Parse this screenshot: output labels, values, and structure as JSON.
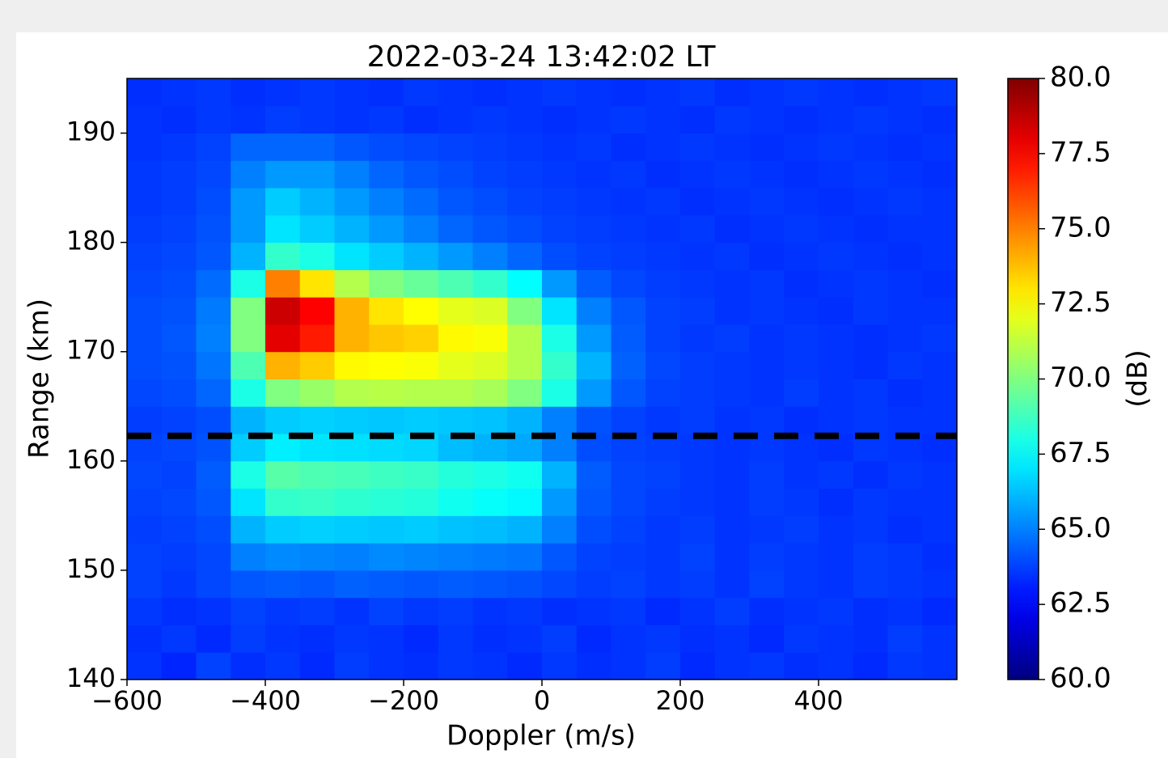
{
  "chart_data": {
    "type": "heatmap",
    "title": "2022-03-24 13:42:02 LT",
    "x_label": "Doppler (m/s)",
    "y_label": "Range (km)",
    "colorbar_label": "(dB)",
    "colormap": "jet",
    "xlim": [
      -600,
      600
    ],
    "ylim": [
      140,
      195
    ],
    "zlim": [
      60,
      80
    ],
    "xticks": [
      {
        "value": -600,
        "label": "−600"
      },
      {
        "value": -400,
        "label": "−400"
      },
      {
        "value": -200,
        "label": "−200"
      },
      0,
      200,
      400
    ],
    "yticks": [
      140,
      150,
      160,
      170,
      180,
      190
    ],
    "zticks": [
      {
        "value": 60,
        "label": "60.0"
      },
      {
        "value": 62.5,
        "label": "62.5"
      },
      {
        "value": 65,
        "label": "65.0"
      },
      {
        "value": 67.5,
        "label": "67.5"
      },
      {
        "value": 70,
        "label": "70.0"
      },
      {
        "value": 72.5,
        "label": "72.5"
      },
      {
        "value": 75,
        "label": "75.0"
      },
      {
        "value": 77.5,
        "label": "77.5"
      },
      {
        "value": 80,
        "label": "80.0"
      }
    ],
    "reference_line": {
      "y": 162.3,
      "color": "#000000"
    },
    "x": [
      -575,
      -525,
      -475,
      -425,
      -375,
      -325,
      -275,
      -225,
      -175,
      -125,
      -75,
      -25,
      25,
      75,
      125,
      175,
      225,
      275,
      325,
      375,
      425,
      475,
      525,
      575
    ],
    "y": [
      141.25,
      143.75,
      146.25,
      148.75,
      151.25,
      153.75,
      156.25,
      158.75,
      161.25,
      163.75,
      166.25,
      168.75,
      171.25,
      173.75,
      176.25,
      178.75,
      181.25,
      183.75,
      186.25,
      188.75,
      191.25,
      193.75
    ],
    "z": [
      [
        63.5,
        63.2,
        63.8,
        63.4,
        63.6,
        63.3,
        63.7,
        63.5,
        63.4,
        63.6,
        63.5,
        63.3,
        63.6,
        63.4,
        63.5,
        63.7,
        63.3,
        63.5,
        63.6,
        63.4,
        63.5,
        63.3,
        63.6,
        63.5
      ],
      [
        63.4,
        63.6,
        63.3,
        63.7,
        63.5,
        63.4,
        63.6,
        63.5,
        63.3,
        63.6,
        63.4,
        63.5,
        63.7,
        63.3,
        63.5,
        63.6,
        63.4,
        63.5,
        63.3,
        63.6,
        63.5,
        63.4,
        63.7,
        63.5
      ],
      [
        63.6,
        63.4,
        63.5,
        63.8,
        63.6,
        63.7,
        63.5,
        63.8,
        63.6,
        63.7,
        63.5,
        63.6,
        63.4,
        63.5,
        63.6,
        63.3,
        63.5,
        63.7,
        63.4,
        63.5,
        63.6,
        63.4,
        63.5,
        63.3
      ],
      [
        63.8,
        63.6,
        63.9,
        64.2,
        64.3,
        64.2,
        64.4,
        64.3,
        64.2,
        64.3,
        64.2,
        64.1,
        63.9,
        63.7,
        63.8,
        63.6,
        63.7,
        63.5,
        63.8,
        63.6,
        63.5,
        63.7,
        63.6,
        63.5
      ],
      [
        63.8,
        63.7,
        63.9,
        65.0,
        65.2,
        65.1,
        65.0,
        65.2,
        65.1,
        65.0,
        64.9,
        64.8,
        64.2,
        63.8,
        63.7,
        63.6,
        63.8,
        63.5,
        63.7,
        63.6,
        63.5,
        63.7,
        63.6,
        63.4
      ],
      [
        63.7,
        63.8,
        64.0,
        66.0,
        66.5,
        66.6,
        66.5,
        66.4,
        66.5,
        66.3,
        66.2,
        66.0,
        65.0,
        64.0,
        63.8,
        63.6,
        63.7,
        63.5,
        63.6,
        63.7,
        63.5,
        63.6,
        63.4,
        63.5
      ],
      [
        63.8,
        63.9,
        64.2,
        67.0,
        68.5,
        68.6,
        68.4,
        68.3,
        68.2,
        67.8,
        67.6,
        67.4,
        65.5,
        64.2,
        63.9,
        63.7,
        63.6,
        63.5,
        63.7,
        63.6,
        63.4,
        63.6,
        63.5,
        63.5
      ],
      [
        63.9,
        63.8,
        64.3,
        68.0,
        69.2,
        69.0,
        68.9,
        68.7,
        68.6,
        68.2,
        68.0,
        67.8,
        66.0,
        64.3,
        63.9,
        63.8,
        63.6,
        63.5,
        63.7,
        63.5,
        63.6,
        63.4,
        63.6,
        63.5
      ],
      [
        63.8,
        63.9,
        64.1,
        66.5,
        67.2,
        67.0,
        66.9,
        66.8,
        66.7,
        66.2,
        66.0,
        65.8,
        65.0,
        64.0,
        63.8,
        63.7,
        63.6,
        63.5,
        63.6,
        63.5,
        63.4,
        63.6,
        63.5,
        63.4
      ],
      [
        63.7,
        63.8,
        64.0,
        66.0,
        66.5,
        66.6,
        66.5,
        66.4,
        66.5,
        66.4,
        66.3,
        66.0,
        65.0,
        64.1,
        63.8,
        63.6,
        63.7,
        63.5,
        63.6,
        63.4,
        63.5,
        63.6,
        63.5,
        63.5
      ],
      [
        63.9,
        64.0,
        64.5,
        68.0,
        70.0,
        70.5,
        71.0,
        71.1,
        71.0,
        71.0,
        70.8,
        70.0,
        68.0,
        65.5,
        64.2,
        63.8,
        63.7,
        63.6,
        63.5,
        63.7,
        63.5,
        63.6,
        63.4,
        63.5
      ],
      [
        64.0,
        64.1,
        64.8,
        69.0,
        74.0,
        73.5,
        72.6,
        72.5,
        72.4,
        72.0,
        71.8,
        71.0,
        68.5,
        66.0,
        64.4,
        63.9,
        63.7,
        63.6,
        63.5,
        63.6,
        63.5,
        63.4,
        63.6,
        63.5
      ],
      [
        64.0,
        64.2,
        65.0,
        70.0,
        78.0,
        77.0,
        74.0,
        73.6,
        73.4,
        72.6,
        72.4,
        71.0,
        68.0,
        65.5,
        64.3,
        63.8,
        63.6,
        63.7,
        63.5,
        63.6,
        63.5,
        63.4,
        63.5,
        63.6
      ],
      [
        64.0,
        64.1,
        64.9,
        70.0,
        78.5,
        77.5,
        74.0,
        73.0,
        72.5,
        72.0,
        71.8,
        70.0,
        67.0,
        65.0,
        64.2,
        63.8,
        63.7,
        63.5,
        63.6,
        63.5,
        63.4,
        63.6,
        63.5,
        63.5
      ],
      [
        63.9,
        64.0,
        64.6,
        68.0,
        75.0,
        73.0,
        71.0,
        70.0,
        69.5,
        69.0,
        68.5,
        67.5,
        65.5,
        64.3,
        63.9,
        63.7,
        63.6,
        63.5,
        63.6,
        63.4,
        63.5,
        63.6,
        63.5,
        63.4
      ],
      [
        63.8,
        63.9,
        64.2,
        66.0,
        68.5,
        68.0,
        67.0,
        66.5,
        66.0,
        65.5,
        65.0,
        64.5,
        64.0,
        63.8,
        63.7,
        63.6,
        63.5,
        63.6,
        63.4,
        63.5,
        63.6,
        63.5,
        63.4,
        63.5
      ],
      [
        63.7,
        63.8,
        64.1,
        65.5,
        67.0,
        66.5,
        66.0,
        65.5,
        65.0,
        64.5,
        64.2,
        64.0,
        63.8,
        63.7,
        63.6,
        63.5,
        63.6,
        63.4,
        63.5,
        63.6,
        63.5,
        63.4,
        63.5,
        63.5
      ],
      [
        63.6,
        63.7,
        64.0,
        65.5,
        66.5,
        66.0,
        65.5,
        65.0,
        64.6,
        64.2,
        64.0,
        63.8,
        63.7,
        63.6,
        63.5,
        63.6,
        63.4,
        63.5,
        63.6,
        63.5,
        63.4,
        63.5,
        63.6,
        63.5
      ],
      [
        63.6,
        63.7,
        63.9,
        65.0,
        65.5,
        65.5,
        65.0,
        64.5,
        64.2,
        64.0,
        63.8,
        63.7,
        63.6,
        63.5,
        63.6,
        63.4,
        63.5,
        63.6,
        63.5,
        63.4,
        63.5,
        63.6,
        63.5,
        63.4
      ],
      [
        63.5,
        63.6,
        63.8,
        64.5,
        64.5,
        64.5,
        64.2,
        64.0,
        63.9,
        63.8,
        63.7,
        63.6,
        63.5,
        63.6,
        63.4,
        63.5,
        63.6,
        63.5,
        63.4,
        63.5,
        63.6,
        63.5,
        63.4,
        63.5
      ],
      [
        63.5,
        63.4,
        63.6,
        63.5,
        63.7,
        63.6,
        63.5,
        63.6,
        63.4,
        63.5,
        63.6,
        63.5,
        63.4,
        63.5,
        63.6,
        63.5,
        63.4,
        63.6,
        63.5,
        63.4,
        63.5,
        63.6,
        63.5,
        63.4
      ],
      [
        63.4,
        63.5,
        63.6,
        63.4,
        63.5,
        63.6,
        63.5,
        63.4,
        63.6,
        63.5,
        63.4,
        63.5,
        63.6,
        63.5,
        63.4,
        63.5,
        63.6,
        63.4,
        63.5,
        63.6,
        63.5,
        63.4,
        63.5,
        63.6
      ]
    ]
  }
}
